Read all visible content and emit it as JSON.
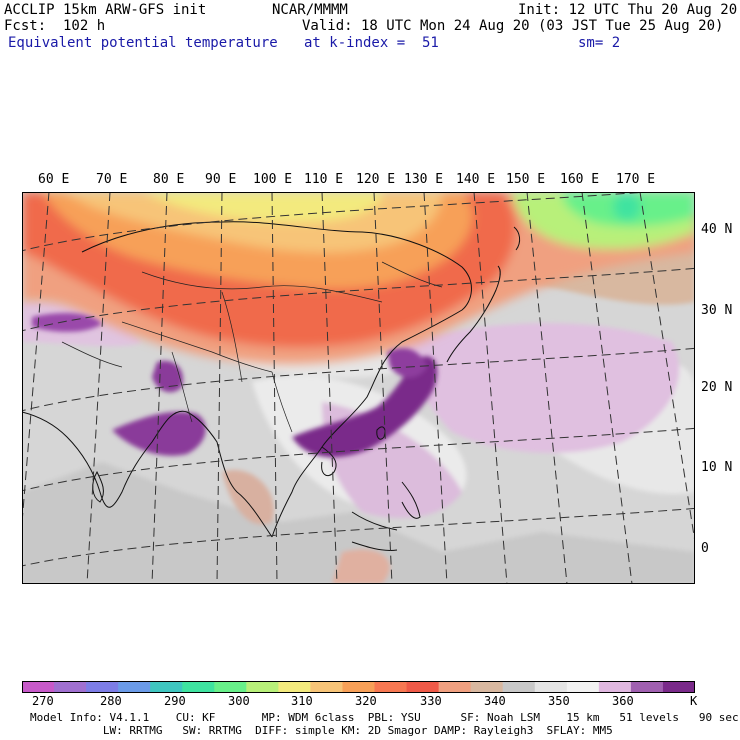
{
  "header": {
    "model": "ACCLIP 15km ARW-GFS init",
    "forecast": "Fcst:  102 h",
    "field": "Equivalent potential temperature",
    "center": "NCAR/MMMM",
    "init": "Init: 12 UTC Thu 20 Aug 20",
    "valid": "Valid: 18 UTC Mon 24 Aug 20 (03 JST Tue 25 Aug 20)",
    "level": "at k-index =  51",
    "smoothing": "sm= 2"
  },
  "map": {
    "longitude_labels": [
      "60 E",
      "70 E",
      "80 E",
      "90 E",
      "100 E",
      "110 E",
      "120 E",
      "130 E",
      "140 E",
      "150 E",
      "160 E",
      "170 E"
    ],
    "latitude_labels": [
      "40 N",
      "30 N",
      "20 N",
      "10 N",
      "0"
    ]
  },
  "colorbar": {
    "unit": "K",
    "colors": [
      "#c75ac9",
      "#a070d0",
      "#7d7de6",
      "#6b9be8",
      "#3fc6c0",
      "#3fe3a0",
      "#68f08a",
      "#b8f07a",
      "#f3ea7e",
      "#f7c478",
      "#f7a058",
      "#f77852",
      "#ef5a48",
      "#f0a080",
      "#d8b8a0",
      "#c8c8c8",
      "#e4e4e4",
      "#f2f2f2",
      "#e0b8e0",
      "#a060b0",
      "#7a2a8a"
    ],
    "tick_labels": [
      "270",
      "280",
      "290",
      "300",
      "310",
      "320",
      "330",
      "340",
      "350",
      "360"
    ]
  },
  "footer": {
    "line1": "Model Info: V4.1.1    CU: KF       MP: WDM 6class  PBL: YSU      SF: Noah LSM    15 km   51 levels   90 sec",
    "line2": "           LW: RRTMG   SW: RRTMG  DIFF: simple KM: 2D Smagor DAMP: Rayleigh3  SFLAY: MM5"
  }
}
